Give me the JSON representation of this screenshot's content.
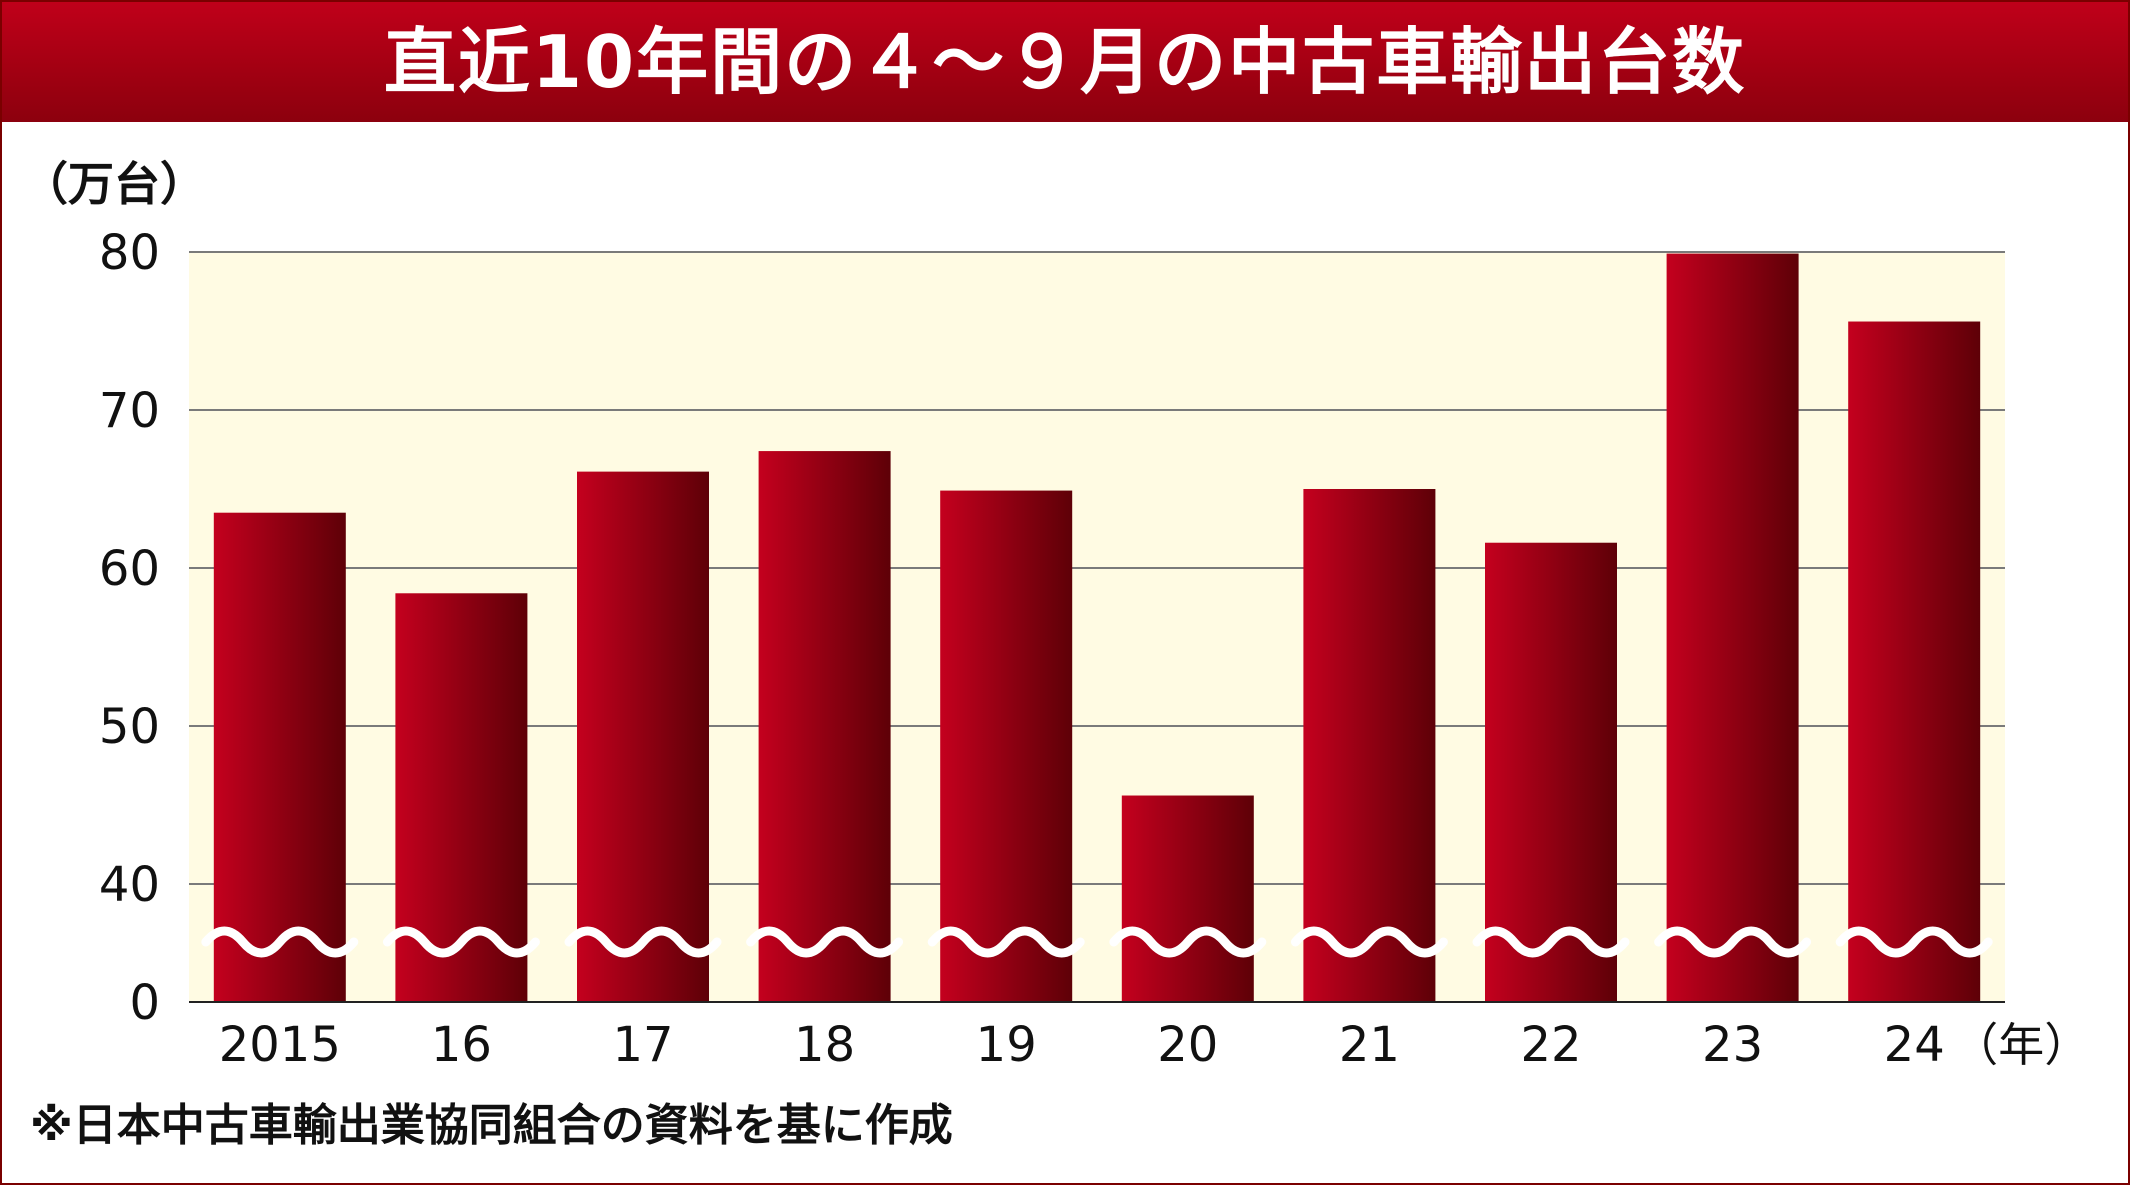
{
  "title": "直近10年間の４～９月の中古車輸出台数",
  "note": "※日本中古車輸出業協同組合の資料を基に作成",
  "colors": {
    "title_bg": "#a30012",
    "plot_bg": "#fffbe3",
    "bar_light": "#c4001e",
    "bar_dark": "#5e0007",
    "grid": "#7a7a7a",
    "break_mark": "#ffffff"
  },
  "chart_data": {
    "type": "bar",
    "ylabel": "（万台）",
    "x_unit": "（年）",
    "categories": [
      "2015",
      "16",
      "17",
      "18",
      "19",
      "20",
      "21",
      "22",
      "23",
      "24"
    ],
    "values": [
      63.5,
      58.4,
      66.1,
      67.4,
      64.9,
      45.6,
      65.0,
      61.6,
      79.9,
      75.6
    ],
    "y_ticks": [
      "0",
      "40",
      "50",
      "60",
      "70",
      "80"
    ],
    "ylim": [
      0,
      80
    ],
    "axis_break": "between 0 and 40",
    "grid": true
  }
}
